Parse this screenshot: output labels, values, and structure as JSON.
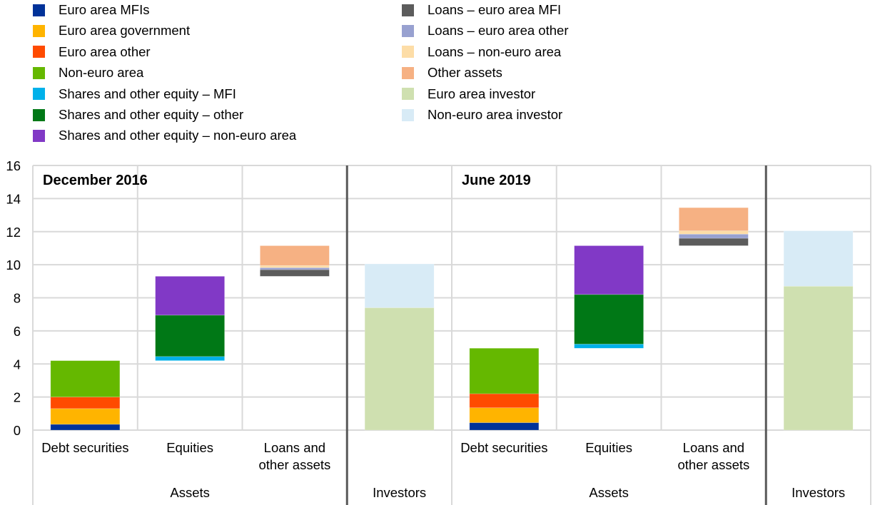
{
  "chart_data": {
    "type": "bar",
    "stacked": true,
    "ylim": [
      0,
      16
    ],
    "yticks": [
      0,
      2,
      4,
      6,
      8,
      10,
      12,
      14,
      16
    ],
    "grid": true,
    "legend_position": "top",
    "legend": [
      {
        "key": "euro_area_mfis",
        "label": "Euro area MFIs",
        "color": "#003299"
      },
      {
        "key": "euro_area_government",
        "label": "Euro area government",
        "color": "#FFB400"
      },
      {
        "key": "euro_area_other",
        "label": "Euro area other",
        "color": "#FF4B00"
      },
      {
        "key": "non_euro_area",
        "label": "Non-euro area",
        "color": "#65B800"
      },
      {
        "key": "shares_mfi",
        "label": "Shares and other equity – MFI",
        "color": "#00B1EA"
      },
      {
        "key": "shares_other",
        "label": "Shares and other equity – other",
        "color": "#007816"
      },
      {
        "key": "shares_non_euro",
        "label": "Shares and other equity – non-euro area",
        "color": "#8139C6"
      },
      {
        "key": "loans_mfi",
        "label": "Loans – euro area MFI",
        "color": "#5C5C5C"
      },
      {
        "key": "loans_other",
        "label": "Loans – euro area other",
        "color": "#98A1D0"
      },
      {
        "key": "loans_non_euro",
        "label": "Loans – non-euro area",
        "color": "#FDDDA7"
      },
      {
        "key": "other_assets",
        "label": "Other assets",
        "color": "#F6B183"
      },
      {
        "key": "euro_investor",
        "label": "Euro area investor",
        "color": "#CFE0B0"
      },
      {
        "key": "non_euro_investor",
        "label": "Non-euro area investor",
        "color": "#D8EBF6"
      }
    ],
    "panels": [
      {
        "title": "December 2016",
        "groups": [
          {
            "name": "Assets",
            "categories": [
              {
                "label_lines": [
                  "Debt securities"
                ],
                "base": 0,
                "segments": [
                  {
                    "key": "euro_area_mfis",
                    "value": 0.35
                  },
                  {
                    "key": "euro_area_government",
                    "value": 0.95
                  },
                  {
                    "key": "euro_area_other",
                    "value": 0.7
                  },
                  {
                    "key": "non_euro_area",
                    "value": 2.2
                  }
                ]
              },
              {
                "label_lines": [
                  "Equities"
                ],
                "base": 4.2,
                "segments": [
                  {
                    "key": "shares_mfi",
                    "value": 0.25
                  },
                  {
                    "key": "shares_other",
                    "value": 2.5
                  },
                  {
                    "key": "shares_non_euro",
                    "value": 2.35
                  }
                ]
              },
              {
                "label_lines": [
                  "Loans and",
                  "other assets"
                ],
                "base": 9.3,
                "segments": [
                  {
                    "key": "loans_mfi",
                    "value": 0.4
                  },
                  {
                    "key": "loans_other",
                    "value": 0.12
                  },
                  {
                    "key": "loans_non_euro",
                    "value": 0.13
                  },
                  {
                    "key": "other_assets",
                    "value": 1.2
                  }
                ]
              }
            ]
          },
          {
            "name": "Investors",
            "categories": [
              {
                "label_lines": [
                  ""
                ],
                "base": 0,
                "segments": [
                  {
                    "key": "euro_investor",
                    "value": 7.4
                  },
                  {
                    "key": "non_euro_investor",
                    "value": 2.65
                  }
                ]
              }
            ]
          }
        ]
      },
      {
        "title": "June 2019",
        "groups": [
          {
            "name": "Assets",
            "categories": [
              {
                "label_lines": [
                  "Debt securities"
                ],
                "base": 0,
                "segments": [
                  {
                    "key": "euro_area_mfis",
                    "value": 0.45
                  },
                  {
                    "key": "euro_area_government",
                    "value": 0.9
                  },
                  {
                    "key": "euro_area_other",
                    "value": 0.85
                  },
                  {
                    "key": "non_euro_area",
                    "value": 2.75
                  }
                ]
              },
              {
                "label_lines": [
                  "Equities"
                ],
                "base": 4.95,
                "segments": [
                  {
                    "key": "shares_mfi",
                    "value": 0.25
                  },
                  {
                    "key": "shares_other",
                    "value": 3.0
                  },
                  {
                    "key": "shares_non_euro",
                    "value": 2.95
                  }
                ]
              },
              {
                "label_lines": [
                  "Loans and",
                  "other assets"
                ],
                "base": 11.15,
                "segments": [
                  {
                    "key": "loans_mfi",
                    "value": 0.45
                  },
                  {
                    "key": "loans_other",
                    "value": 0.25
                  },
                  {
                    "key": "loans_non_euro",
                    "value": 0.2
                  },
                  {
                    "key": "other_assets",
                    "value": 1.4
                  }
                ]
              }
            ]
          },
          {
            "name": "Investors",
            "categories": [
              {
                "label_lines": [
                  ""
                ],
                "base": 0,
                "segments": [
                  {
                    "key": "euro_investor",
                    "value": 8.7
                  },
                  {
                    "key": "non_euro_investor",
                    "value": 3.35
                  }
                ]
              }
            ]
          }
        ]
      }
    ]
  }
}
